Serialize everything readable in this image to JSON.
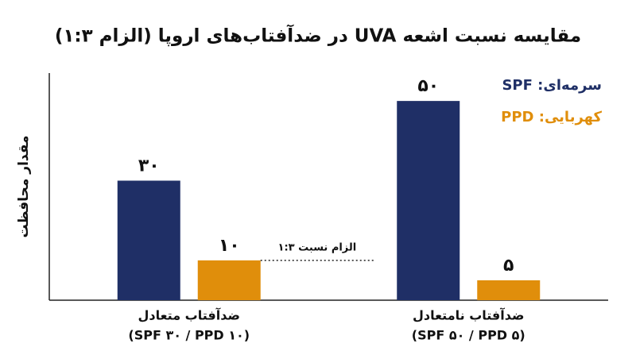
{
  "chart_data": {
    "type": "bar",
    "title": "مقایسه نسبت اشعه UVA در ضدآفتاب‌های اروپا (الزام ۱:۳)",
    "y_label": "مقدار محافظت",
    "categories": [
      "ضدآفتاب متعادل",
      "ضدآفتاب نامتعادل"
    ],
    "category_notes": [
      "(SPF ۳۰ / PPD ۱۰)",
      "(SPF ۵۰ / PPD ۵)"
    ],
    "series": [
      {
        "name": "سرمه‌ای: SPF",
        "color": "#1f2f66",
        "values": [
          30,
          50
        ],
        "value_labels": [
          "۳۰",
          "۵۰"
        ]
      },
      {
        "name": "کهربایی: PPD",
        "color": "#e08e0b",
        "values": [
          10,
          5
        ],
        "value_labels": [
          "۱۰",
          "۵"
        ]
      }
    ],
    "annotation": {
      "text": "الزام نسبت ۱:۳",
      "value": 10
    },
    "ylim": [
      0,
      57
    ],
    "legend": "top-right"
  }
}
